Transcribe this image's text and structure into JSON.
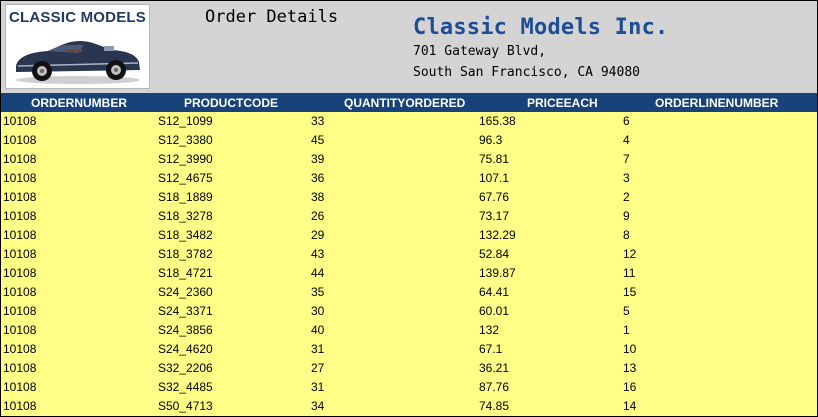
{
  "logo": {
    "text": "CLASSIC MODELS"
  },
  "report": {
    "title": "Order Details"
  },
  "company": {
    "name": "Classic Models Inc.",
    "address_line1": "701 Gateway Blvd,",
    "address_line2": "South San Francisco, CA 94080"
  },
  "colors": {
    "header_bg": "#17427a",
    "row_bg": "#ffff88",
    "company_name": "#1c4e95"
  },
  "table": {
    "columns": [
      "ORDERNUMBER",
      "PRODUCTCODE",
      "QUANTITYORDERED",
      "PRICEEACH",
      "ORDERLINENUMBER"
    ],
    "rows": [
      [
        "10108",
        "S12_1099",
        "33",
        "165.38",
        "6"
      ],
      [
        "10108",
        "S12_3380",
        "45",
        "96.3",
        "4"
      ],
      [
        "10108",
        "S12_3990",
        "39",
        "75.81",
        "7"
      ],
      [
        "10108",
        "S12_4675",
        "36",
        "107.1",
        "3"
      ],
      [
        "10108",
        "S18_1889",
        "38",
        "67.76",
        "2"
      ],
      [
        "10108",
        "S18_3278",
        "26",
        "73.17",
        "9"
      ],
      [
        "10108",
        "S18_3482",
        "29",
        "132.29",
        "8"
      ],
      [
        "10108",
        "S18_3782",
        "43",
        "52.84",
        "12"
      ],
      [
        "10108",
        "S18_4721",
        "44",
        "139.87",
        "11"
      ],
      [
        "10108",
        "S24_2360",
        "35",
        "64.41",
        "15"
      ],
      [
        "10108",
        "S24_3371",
        "30",
        "60.01",
        "5"
      ],
      [
        "10108",
        "S24_3856",
        "40",
        "132",
        "1"
      ],
      [
        "10108",
        "S24_4620",
        "31",
        "67.1",
        "10"
      ],
      [
        "10108",
        "S32_2206",
        "27",
        "36.21",
        "13"
      ],
      [
        "10108",
        "S32_4485",
        "31",
        "87.76",
        "16"
      ],
      [
        "10108",
        "S50_4713",
        "34",
        "74.85",
        "14"
      ]
    ]
  }
}
